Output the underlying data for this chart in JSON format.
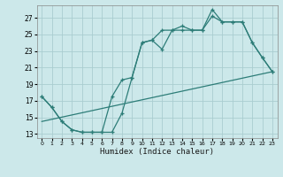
{
  "xlabel": "Humidex (Indice chaleur)",
  "bg_color": "#cce8ea",
  "grid_color": "#aacdd0",
  "line_color": "#2d7d78",
  "line1_x": [
    0,
    1,
    2,
    3,
    4,
    5,
    6,
    7,
    8,
    9,
    10,
    11,
    12,
    13,
    14,
    15,
    16,
    17,
    18,
    19,
    20,
    21,
    22,
    23
  ],
  "line1_y": [
    17.5,
    16.2,
    14.5,
    13.5,
    13.2,
    13.2,
    13.2,
    13.2,
    15.5,
    19.8,
    24.0,
    24.3,
    23.2,
    25.5,
    25.5,
    25.5,
    25.5,
    28.0,
    26.5,
    26.5,
    26.5,
    24.0,
    22.2,
    20.5
  ],
  "line2_x": [
    0,
    1,
    2,
    3,
    4,
    5,
    6,
    7,
    8,
    9,
    10,
    11,
    12,
    13,
    14,
    15,
    16,
    17,
    18,
    19,
    20,
    21,
    22,
    23
  ],
  "line2_y": [
    17.5,
    16.2,
    14.5,
    13.5,
    13.2,
    13.2,
    13.2,
    17.5,
    19.5,
    19.8,
    24.0,
    24.3,
    25.5,
    25.5,
    26.0,
    25.5,
    25.5,
    27.2,
    26.5,
    26.5,
    26.5,
    24.0,
    22.2,
    20.5
  ],
  "line3_x": [
    0,
    23
  ],
  "line3_y": [
    14.5,
    20.5
  ],
  "ylim": [
    12.5,
    28.5
  ],
  "xlim": [
    -0.5,
    23.5
  ],
  "yticks": [
    13,
    15,
    17,
    19,
    21,
    23,
    25,
    27
  ],
  "xticks": [
    0,
    1,
    2,
    3,
    4,
    5,
    6,
    7,
    8,
    9,
    10,
    11,
    12,
    13,
    14,
    15,
    16,
    17,
    18,
    19,
    20,
    21,
    22,
    23
  ]
}
